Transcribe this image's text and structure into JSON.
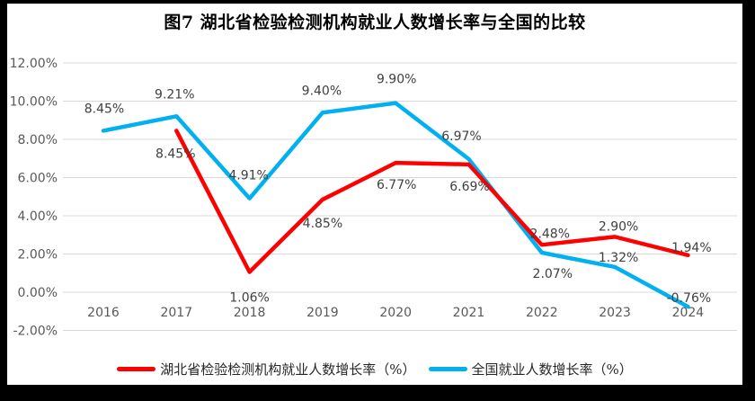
{
  "frame": {
    "border_color": "#000000",
    "canvas_color": "#ffffff"
  },
  "chart_data": {
    "type": "line",
    "title": "图7 湖北省检验检测机构就业人数增长率与全国的比较",
    "categories": [
      "2016",
      "2017",
      "2018",
      "2019",
      "2020",
      "2021",
      "2022",
      "2023",
      "2024"
    ],
    "series": [
      {
        "name": "湖北省检验检测机构就业人数增长率（%）",
        "color": "#FF0000",
        "values": [
          null,
          8.45,
          1.06,
          4.85,
          6.77,
          6.69,
          2.48,
          2.9,
          1.94
        ],
        "data_labels": [
          null,
          "8.45%",
          "1.06%",
          "4.85%",
          "6.77%",
          "6.69%",
          "2.48%",
          "2.90%",
          "1.94%"
        ],
        "label_offsets": [
          null,
          [
            -1,
            25
          ],
          [
            0,
            28
          ],
          [
            0,
            26
          ],
          [
            1,
            24
          ],
          [
            1,
            24
          ],
          [
            9,
            -13
          ],
          [
            4,
            -12
          ],
          [
            4,
            -9
          ]
        ]
      },
      {
        "name": "全国就业人数增长率（%）",
        "color": "#00B0F0",
        "values": [
          8.45,
          9.21,
          4.91,
          9.4,
          9.9,
          6.97,
          2.07,
          1.32,
          -0.76
        ],
        "data_labels": [
          "8.45%",
          "9.21%",
          "4.91%",
          "9.40%",
          "9.90%",
          "6.97%",
          "2.07%",
          "1.32%",
          "-0.76%"
        ],
        "label_offsets": [
          [
            1,
            -25
          ],
          [
            -2,
            -25
          ],
          [
            -1,
            -26
          ],
          [
            -1,
            -25
          ],
          [
            1,
            -27
          ],
          [
            -8,
            -26
          ],
          [
            12,
            23
          ],
          [
            4,
            -11
          ],
          [
            1,
            -10
          ]
        ]
      }
    ],
    "y_axis": {
      "min": -2,
      "max": 12,
      "step": 2,
      "tick_labels": [
        "12.00%",
        "10.00%",
        "8.00%",
        "6.00%",
        "4.00%",
        "2.00%",
        "0.00%",
        "-2.00%"
      ]
    },
    "grid": true,
    "legend_position": "bottom",
    "style": {
      "gridline_color": "#D9D9D9",
      "tick_label_color": "#595959",
      "data_label_color": "#404040",
      "line_width": 4.5
    }
  }
}
